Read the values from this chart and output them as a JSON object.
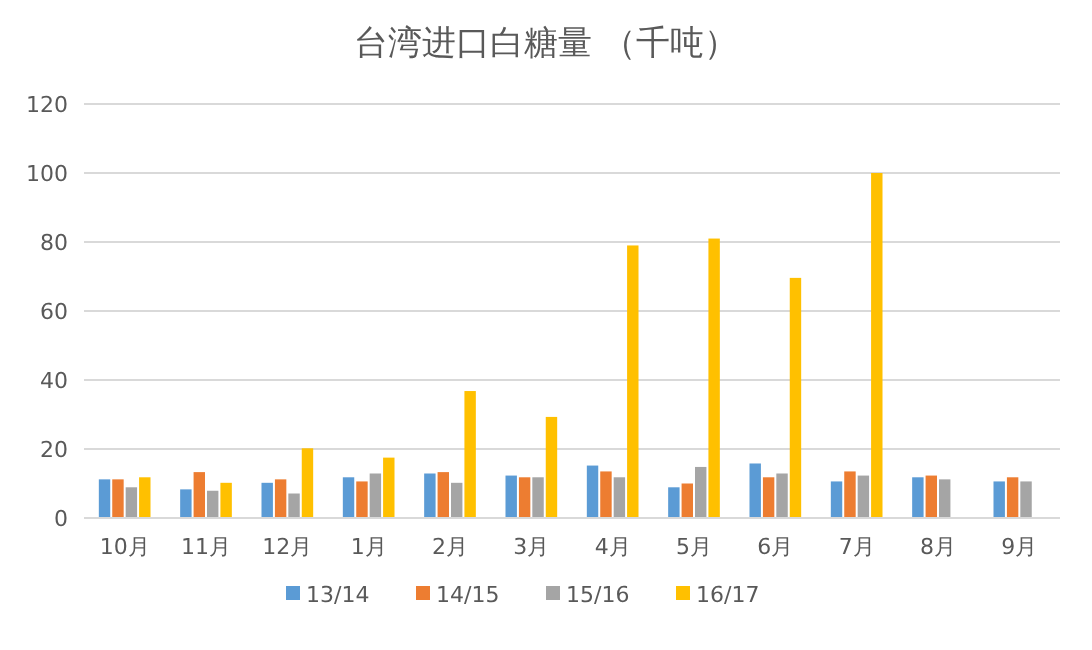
{
  "chart_data": {
    "type": "bar",
    "title": "台湾进口白糖量 （千吨）",
    "categories": [
      "10月",
      "11月",
      "12月",
      "1月",
      "2月",
      "3月",
      "4月",
      "5月",
      "6月",
      "7月",
      "8月",
      "9月"
    ],
    "series": [
      {
        "name": "13/14",
        "color": "#5b9bd5",
        "values": [
          11.2,
          8.3,
          10.2,
          11.8,
          12.9,
          12.3,
          15.2,
          8.9,
          15.8,
          10.6,
          11.8,
          10.6
        ]
      },
      {
        "name": "14/15",
        "color": "#ed7d31",
        "values": [
          11.2,
          13.3,
          11.2,
          10.6,
          13.3,
          11.8,
          13.5,
          10,
          11.8,
          13.5,
          12.3,
          11.8
        ]
      },
      {
        "name": "15/16",
        "color": "#a5a5a5",
        "values": [
          8.9,
          7.9,
          7.1,
          12.9,
          10.2,
          11.8,
          11.8,
          14.8,
          12.9,
          12.3,
          11.2,
          10.6
        ]
      },
      {
        "name": "16/17",
        "color": "#ffc000",
        "values": [
          11.8,
          10.2,
          20.2,
          17.5,
          36.8,
          29.3,
          79,
          81,
          69.6,
          100,
          null,
          null
        ]
      }
    ],
    "ylim": [
      0,
      120
    ],
    "yticks": [
      0,
      20,
      40,
      60,
      80,
      100,
      120
    ],
    "grid": "y",
    "legend": "bottom"
  }
}
